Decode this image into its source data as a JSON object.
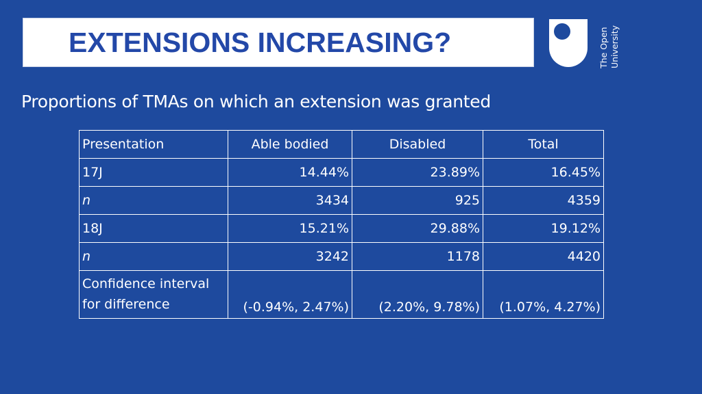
{
  "title": "EXTENSIONS INCREASING?",
  "logo": {
    "text_line1": "The Open",
    "text_line2": "University"
  },
  "subtitle": "Proportions of TMAs on which an extension was granted",
  "table": {
    "headers": [
      "Presentation",
      "Able bodied",
      "Disabled",
      "Total"
    ],
    "rows": [
      [
        "17J",
        "14.44%",
        "23.89%",
        "16.45%"
      ],
      [
        "n",
        "3434",
        "925",
        "4359"
      ],
      [
        "18J",
        "15.21%",
        "29.88%",
        "19.12%"
      ],
      [
        "n",
        "3242",
        "1178",
        "4420"
      ],
      [
        "Confidence interval for difference",
        "(-0.94%, 2.47%)",
        "(2.20%, 9.78%)",
        "(1.07%, 4.27%)"
      ]
    ]
  },
  "colors": {
    "background": "#1e4a9e",
    "title_text": "#2348a8",
    "title_box": "#ffffff"
  }
}
